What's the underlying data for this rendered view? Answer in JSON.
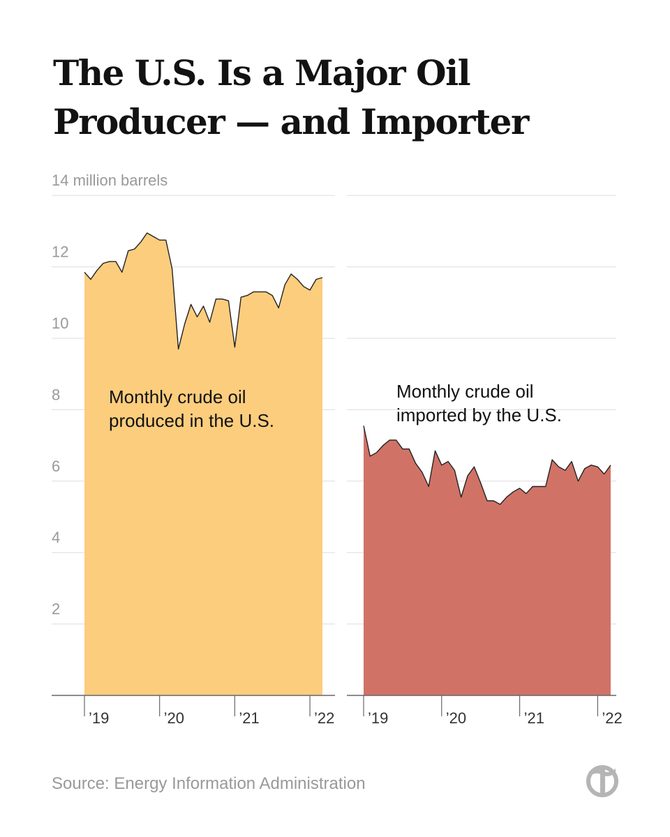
{
  "title": "The U.S. Is a Major Oil Producer — and Importer",
  "source": "Source: Energy Information Administration",
  "logo_icon": "nyt-t-logo",
  "colors": {
    "produced": "#fccd7d",
    "imported": "#d17267",
    "line": "#222222",
    "grid": "#dddddd",
    "axis": "#666666"
  },
  "chart_data": [
    {
      "type": "area",
      "unit": "million barrels",
      "ylim": [
        0,
        14
      ],
      "y_ticks": [
        2,
        4,
        6,
        8,
        10,
        12,
        14
      ],
      "y_tick_labels": [
        "2",
        "4",
        "6",
        "8",
        "10",
        "12",
        "14 million barrels"
      ],
      "x_ticks": [
        "2019-01",
        "2020-01",
        "2021-01",
        "2022-01"
      ],
      "x_tick_labels": [
        "’19",
        "’20",
        "’21",
        "’22"
      ],
      "x_range": [
        "2019-01",
        "2022-03"
      ],
      "grid": true,
      "annotation": [
        "Monthly crude oil",
        "produced in the U.S."
      ],
      "series": [
        {
          "x": [
            "2019-01",
            "2019-02",
            "2019-03",
            "2019-04",
            "2019-05",
            "2019-06",
            "2019-07",
            "2019-08",
            "2019-09",
            "2019-10",
            "2019-11",
            "2019-12",
            "2020-01",
            "2020-02",
            "2020-03",
            "2020-04",
            "2020-05",
            "2020-06",
            "2020-07",
            "2020-08",
            "2020-09",
            "2020-10",
            "2020-11",
            "2020-12",
            "2021-01",
            "2021-02",
            "2021-03",
            "2021-04",
            "2021-05",
            "2021-06",
            "2021-07",
            "2021-08",
            "2021-09",
            "2021-10",
            "2021-11",
            "2021-12",
            "2022-01",
            "2022-02",
            "2022-03"
          ],
          "values": [
            11.85,
            11.65,
            11.9,
            12.1,
            12.15,
            12.15,
            11.85,
            12.45,
            12.5,
            12.7,
            12.95,
            12.85,
            12.75,
            12.75,
            11.95,
            9.7,
            10.4,
            10.95,
            10.6,
            10.9,
            10.45,
            11.1,
            11.1,
            11.05,
            9.75,
            11.15,
            11.2,
            11.3,
            11.3,
            11.3,
            11.2,
            10.85,
            11.5,
            11.8,
            11.65,
            11.45,
            11.35,
            11.65,
            11.7
          ]
        }
      ]
    },
    {
      "type": "area",
      "unit": "million barrels",
      "ylim": [
        0,
        14
      ],
      "y_ticks": [
        2,
        4,
        6,
        8,
        10,
        12,
        14
      ],
      "x_ticks": [
        "2019-01",
        "2020-01",
        "2021-01",
        "2022-01"
      ],
      "x_tick_labels": [
        "’19",
        "’20",
        "’21",
        "’22"
      ],
      "x_range": [
        "2019-01",
        "2022-03"
      ],
      "grid": true,
      "annotation": [
        "Monthly crude oil",
        "imported by the U.S."
      ],
      "series": [
        {
          "x": [
            "2019-01",
            "2019-02",
            "2019-03",
            "2019-04",
            "2019-05",
            "2019-06",
            "2019-07",
            "2019-08",
            "2019-09",
            "2019-10",
            "2019-11",
            "2019-12",
            "2020-01",
            "2020-02",
            "2020-03",
            "2020-04",
            "2020-05",
            "2020-06",
            "2020-07",
            "2020-08",
            "2020-09",
            "2020-10",
            "2020-11",
            "2020-12",
            "2021-01",
            "2021-02",
            "2021-03",
            "2021-04",
            "2021-05",
            "2021-06",
            "2021-07",
            "2021-08",
            "2021-09",
            "2021-10",
            "2021-11",
            "2021-12",
            "2022-01",
            "2022-02",
            "2022-03"
          ],
          "values": [
            7.55,
            6.7,
            6.8,
            7.0,
            7.15,
            7.15,
            6.9,
            6.9,
            6.5,
            6.25,
            5.85,
            6.85,
            6.45,
            6.55,
            6.3,
            5.55,
            6.15,
            6.4,
            5.95,
            5.45,
            5.45,
            5.35,
            5.55,
            5.7,
            5.8,
            5.65,
            5.85,
            5.85,
            5.85,
            6.6,
            6.4,
            6.3,
            6.55,
            6.0,
            6.35,
            6.45,
            6.4,
            6.2,
            6.45
          ]
        }
      ]
    }
  ]
}
